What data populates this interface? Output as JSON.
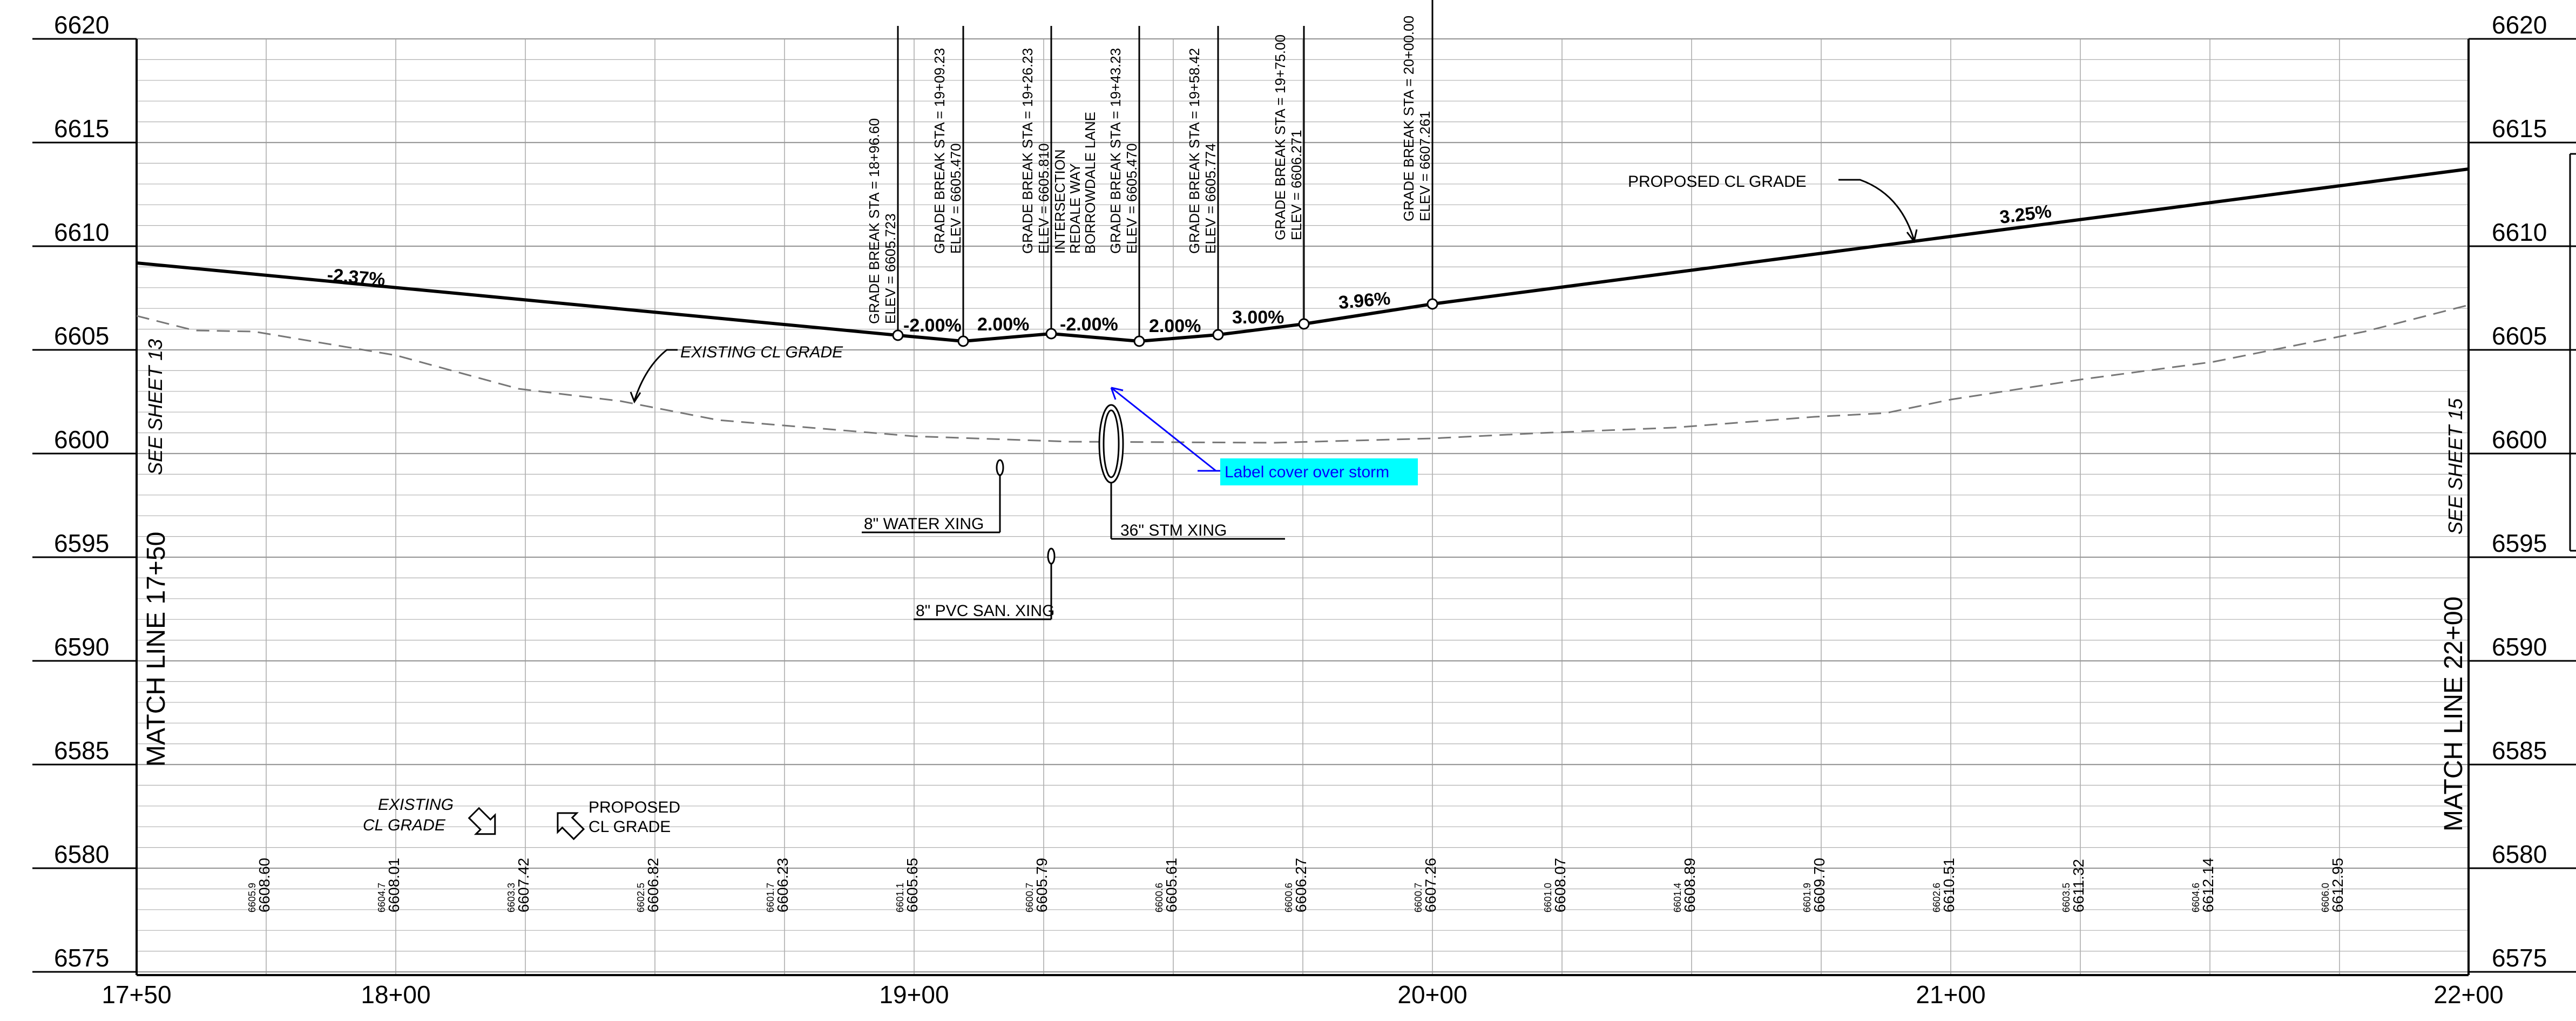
{
  "drawing": {
    "elevation_labels": [
      "6620",
      "6615",
      "6610",
      "6605",
      "6600",
      "6595",
      "6590",
      "6585",
      "6580",
      "6575"
    ],
    "station_labels": [
      "17+50",
      "18+00",
      "19+00",
      "20+00",
      "21+00",
      "22+00"
    ],
    "match_line_left": "MATCH LINE 17+50",
    "match_line_right": "MATCH LINE 22+00",
    "see_sheet_left": "SEE SHEET 13",
    "see_sheet_right": "SEE SHEET 15",
    "proposed_label": "PROPOSED CL GRADE",
    "existing_label": "EXISTING CL GRADE",
    "grade_breaks": [
      {
        "sta": "GRADE BREAK STA = 18+96.60",
        "elev": "ELEV = 6605.723",
        "extra": []
      },
      {
        "sta": "GRADE BREAK STA = 19+09.23",
        "elev": "ELEV = 6605.470",
        "extra": []
      },
      {
        "sta": "GRADE BREAK STA = 19+26.23",
        "elev": "ELEV = 6605.810",
        "extra": [
          "INTERSECTION",
          "REDALE WAY",
          "BORROWDALE LANE"
        ]
      },
      {
        "sta": "GRADE BREAK STA = 19+43.23",
        "elev": "ELEV = 6605.470",
        "extra": []
      },
      {
        "sta": "GRADE BREAK STA = 19+58.42",
        "elev": "ELEV = 6605.774",
        "extra": []
      },
      {
        "sta": "GRADE BREAK STA = 19+75.00",
        "elev": "ELEV = 6606.271",
        "extra": []
      },
      {
        "sta": "GRADE BREAK STA = 20+00.00",
        "elev": "ELEV = 6607.261",
        "extra": []
      }
    ],
    "grades": [
      "-2.37%",
      "-2.00%",
      "2.00%",
      "-2.00%",
      "2.00%",
      "3.00%",
      "3.96%",
      "3.25%"
    ],
    "crossings": {
      "water": "8\" WATER XING",
      "storm": "36\" STM XING",
      "sanitary": "8\" PVC SAN. XING"
    },
    "callout": "Label cover over storm",
    "legend": {
      "existing": [
        "EXISTING",
        "CL GRADE"
      ],
      "proposed": [
        "PROPOSED",
        "CL GRADE"
      ]
    },
    "bottom_elevations": [
      {
        "existing": "6605.9",
        "proposed": "6608.60"
      },
      {
        "existing": "6604.7",
        "proposed": "6608.01"
      },
      {
        "existing": "6603.3",
        "proposed": "6607.42"
      },
      {
        "existing": "6602.5",
        "proposed": "6606.82"
      },
      {
        "existing": "6601.7",
        "proposed": "6606.23"
      },
      {
        "existing": "6601.1",
        "proposed": "6605.65"
      },
      {
        "existing": "6600.7",
        "proposed": "6605.79"
      },
      {
        "existing": "6600.6",
        "proposed": "6605.61"
      },
      {
        "existing": "6600.6",
        "proposed": "6606.27"
      },
      {
        "existing": "6600.7",
        "proposed": "6607.26"
      },
      {
        "existing": "6601.0",
        "proposed": "6608.07"
      },
      {
        "existing": "6601.4",
        "proposed": "6608.89"
      },
      {
        "existing": "6601.9",
        "proposed": "6609.70"
      },
      {
        "existing": "6602.6",
        "proposed": "6610.51"
      },
      {
        "existing": "6603.5",
        "proposed": "6611.32"
      },
      {
        "existing": "6604.6",
        "proposed": "6612.14"
      },
      {
        "existing": "6606.0",
        "proposed": "6612.95"
      }
    ],
    "colors": {
      "callout_fill": "#00ffff",
      "callout_text": "#0000ff",
      "leader": "#0000ff"
    }
  }
}
